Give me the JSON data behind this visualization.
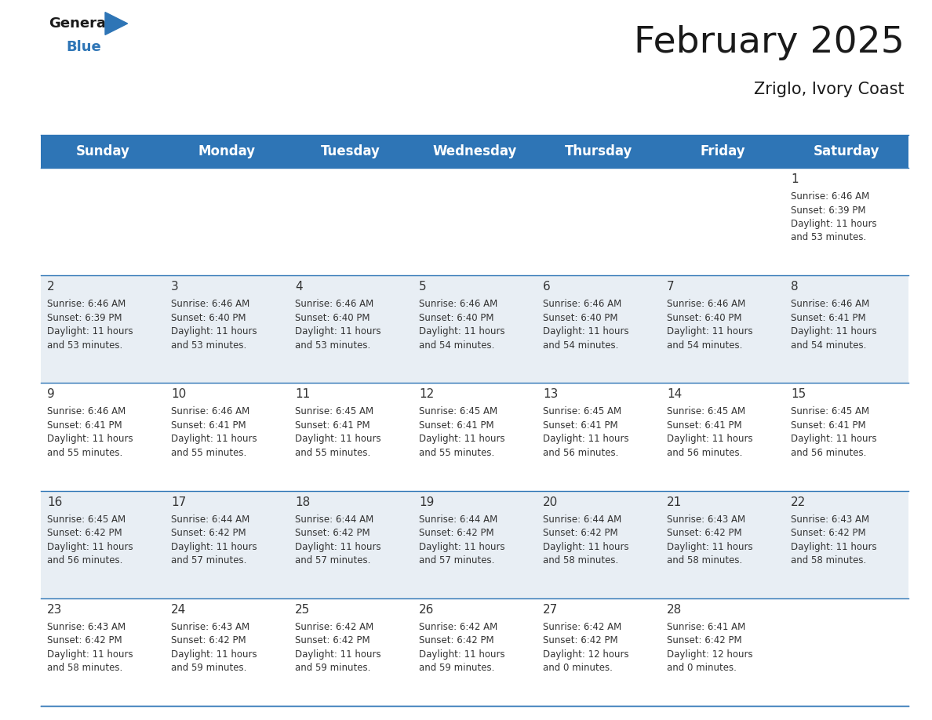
{
  "title": "February 2025",
  "subtitle": "Zriglo, Ivory Coast",
  "header_bg_color": "#2E75B6",
  "header_text_color": "#FFFFFF",
  "cell_bg_color_even": "#FFFFFF",
  "cell_bg_color_odd": "#E8EEF4",
  "day_text_color": "#333333",
  "info_text_color": "#333333",
  "border_color": "#2E75B6",
  "days_of_week": [
    "Sunday",
    "Monday",
    "Tuesday",
    "Wednesday",
    "Thursday",
    "Friday",
    "Saturday"
  ],
  "calendar_data": [
    [
      null,
      null,
      null,
      null,
      null,
      null,
      {
        "day": 1,
        "sunrise": "6:46 AM",
        "sunset": "6:39 PM",
        "daylight": "11 hours\nand 53 minutes."
      }
    ],
    [
      {
        "day": 2,
        "sunrise": "6:46 AM",
        "sunset": "6:39 PM",
        "daylight": "11 hours\nand 53 minutes."
      },
      {
        "day": 3,
        "sunrise": "6:46 AM",
        "sunset": "6:40 PM",
        "daylight": "11 hours\nand 53 minutes."
      },
      {
        "day": 4,
        "sunrise": "6:46 AM",
        "sunset": "6:40 PM",
        "daylight": "11 hours\nand 53 minutes."
      },
      {
        "day": 5,
        "sunrise": "6:46 AM",
        "sunset": "6:40 PM",
        "daylight": "11 hours\nand 54 minutes."
      },
      {
        "day": 6,
        "sunrise": "6:46 AM",
        "sunset": "6:40 PM",
        "daylight": "11 hours\nand 54 minutes."
      },
      {
        "day": 7,
        "sunrise": "6:46 AM",
        "sunset": "6:40 PM",
        "daylight": "11 hours\nand 54 minutes."
      },
      {
        "day": 8,
        "sunrise": "6:46 AM",
        "sunset": "6:41 PM",
        "daylight": "11 hours\nand 54 minutes."
      }
    ],
    [
      {
        "day": 9,
        "sunrise": "6:46 AM",
        "sunset": "6:41 PM",
        "daylight": "11 hours\nand 55 minutes."
      },
      {
        "day": 10,
        "sunrise": "6:46 AM",
        "sunset": "6:41 PM",
        "daylight": "11 hours\nand 55 minutes."
      },
      {
        "day": 11,
        "sunrise": "6:45 AM",
        "sunset": "6:41 PM",
        "daylight": "11 hours\nand 55 minutes."
      },
      {
        "day": 12,
        "sunrise": "6:45 AM",
        "sunset": "6:41 PM",
        "daylight": "11 hours\nand 55 minutes."
      },
      {
        "day": 13,
        "sunrise": "6:45 AM",
        "sunset": "6:41 PM",
        "daylight": "11 hours\nand 56 minutes."
      },
      {
        "day": 14,
        "sunrise": "6:45 AM",
        "sunset": "6:41 PM",
        "daylight": "11 hours\nand 56 minutes."
      },
      {
        "day": 15,
        "sunrise": "6:45 AM",
        "sunset": "6:41 PM",
        "daylight": "11 hours\nand 56 minutes."
      }
    ],
    [
      {
        "day": 16,
        "sunrise": "6:45 AM",
        "sunset": "6:42 PM",
        "daylight": "11 hours\nand 56 minutes."
      },
      {
        "day": 17,
        "sunrise": "6:44 AM",
        "sunset": "6:42 PM",
        "daylight": "11 hours\nand 57 minutes."
      },
      {
        "day": 18,
        "sunrise": "6:44 AM",
        "sunset": "6:42 PM",
        "daylight": "11 hours\nand 57 minutes."
      },
      {
        "day": 19,
        "sunrise": "6:44 AM",
        "sunset": "6:42 PM",
        "daylight": "11 hours\nand 57 minutes."
      },
      {
        "day": 20,
        "sunrise": "6:44 AM",
        "sunset": "6:42 PM",
        "daylight": "11 hours\nand 58 minutes."
      },
      {
        "day": 21,
        "sunrise": "6:43 AM",
        "sunset": "6:42 PM",
        "daylight": "11 hours\nand 58 minutes."
      },
      {
        "day": 22,
        "sunrise": "6:43 AM",
        "sunset": "6:42 PM",
        "daylight": "11 hours\nand 58 minutes."
      }
    ],
    [
      {
        "day": 23,
        "sunrise": "6:43 AM",
        "sunset": "6:42 PM",
        "daylight": "11 hours\nand 58 minutes."
      },
      {
        "day": 24,
        "sunrise": "6:43 AM",
        "sunset": "6:42 PM",
        "daylight": "11 hours\nand 59 minutes."
      },
      {
        "day": 25,
        "sunrise": "6:42 AM",
        "sunset": "6:42 PM",
        "daylight": "11 hours\nand 59 minutes."
      },
      {
        "day": 26,
        "sunrise": "6:42 AM",
        "sunset": "6:42 PM",
        "daylight": "11 hours\nand 59 minutes."
      },
      {
        "day": 27,
        "sunrise": "6:42 AM",
        "sunset": "6:42 PM",
        "daylight": "12 hours\nand 0 minutes."
      },
      {
        "day": 28,
        "sunrise": "6:41 AM",
        "sunset": "6:42 PM",
        "daylight": "12 hours\nand 0 minutes."
      },
      null
    ]
  ],
  "logo_general_color": "#1A1A1A",
  "logo_blue_color": "#2E75B6",
  "logo_triangle_color": "#2E75B6",
  "title_fontsize": 34,
  "subtitle_fontsize": 15,
  "header_fontsize": 12,
  "day_num_fontsize": 11,
  "info_fontsize": 8.5,
  "background_color": "#FFFFFF"
}
